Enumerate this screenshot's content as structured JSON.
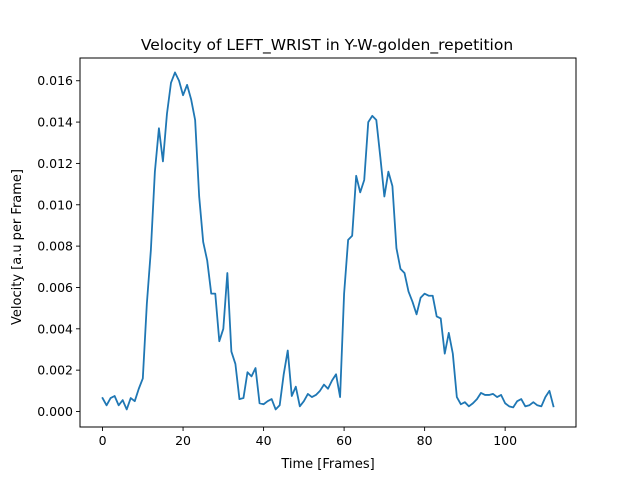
{
  "chart_data": {
    "type": "line",
    "title": "Velocity of LEFT_WRIST in Y-W-golden_repetition",
    "xlabel": "Time [Frames]",
    "ylabel": "Velocity [a.u per Frame]",
    "xlim": [
      -5.6,
      117.6
    ],
    "ylim": [
      -0.00075,
      0.0171
    ],
    "xticks": [
      0,
      20,
      40,
      60,
      80,
      100
    ],
    "xtick_labels": [
      "0",
      "20",
      "40",
      "60",
      "80",
      "100"
    ],
    "yticks": [
      0.0,
      0.002,
      0.004,
      0.006,
      0.008,
      0.01,
      0.012,
      0.014,
      0.016
    ],
    "ytick_labels": [
      "0.000",
      "0.002",
      "0.004",
      "0.006",
      "0.008",
      "0.010",
      "0.012",
      "0.014",
      "0.016"
    ],
    "grid": false,
    "series": [
      {
        "color": "#1f77b4",
        "x": [
          0,
          1,
          2,
          3,
          4,
          5,
          6,
          7,
          8,
          9,
          10,
          11,
          12,
          13,
          14,
          15,
          16,
          17,
          18,
          19,
          20,
          21,
          22,
          23,
          24,
          25,
          26,
          27,
          28,
          29,
          30,
          31,
          32,
          33,
          34,
          35,
          36,
          37,
          38,
          39,
          40,
          41,
          42,
          43,
          44,
          45,
          46,
          47,
          48,
          49,
          50,
          51,
          52,
          53,
          54,
          55,
          56,
          57,
          58,
          59,
          60,
          61,
          62,
          63,
          64,
          65,
          66,
          67,
          68,
          69,
          70,
          71,
          72,
          73,
          74,
          75,
          76,
          77,
          78,
          79,
          80,
          81,
          82,
          83,
          84,
          85,
          86,
          87,
          88,
          89,
          90,
          91,
          92,
          93,
          94,
          95,
          96,
          97,
          98,
          99,
          100,
          101,
          102,
          103,
          104,
          105,
          106,
          107,
          108,
          109,
          110,
          111,
          112
        ],
        "y": [
          0.00065,
          0.0003,
          0.00065,
          0.00075,
          0.0003,
          0.00055,
          0.0001,
          0.00065,
          0.0005,
          0.0011,
          0.0016,
          0.0052,
          0.0078,
          0.0116,
          0.0137,
          0.0121,
          0.0144,
          0.0159,
          0.0164,
          0.016,
          0.0153,
          0.0158,
          0.0151,
          0.0141,
          0.0104,
          0.0082,
          0.0073,
          0.0057,
          0.0057,
          0.0034,
          0.004,
          0.0067,
          0.0029,
          0.0023,
          0.0006,
          0.00065,
          0.0019,
          0.0017,
          0.0021,
          0.0004,
          0.00035,
          0.0005,
          0.0006,
          0.0001,
          0.0003,
          0.0018,
          0.00295,
          0.00075,
          0.0012,
          0.00025,
          0.0005,
          0.00085,
          0.0007,
          0.0008,
          0.001,
          0.0013,
          0.0011,
          0.0015,
          0.0018,
          0.0007,
          0.0057,
          0.0083,
          0.0085,
          0.0114,
          0.0106,
          0.0112,
          0.014,
          0.0143,
          0.0141,
          0.0123,
          0.0104,
          0.0116,
          0.0109,
          0.0079,
          0.0069,
          0.0067,
          0.0058,
          0.0053,
          0.0047,
          0.0055,
          0.0057,
          0.0056,
          0.0056,
          0.0046,
          0.0045,
          0.0028,
          0.0038,
          0.0028,
          0.0007,
          0.00035,
          0.00045,
          0.00025,
          0.0004,
          0.0006,
          0.0009,
          0.0008,
          0.0008,
          0.00085,
          0.0007,
          0.0008,
          0.0004,
          0.00025,
          0.0002,
          0.0005,
          0.0006,
          0.00025,
          0.0003,
          0.00045,
          0.0003,
          0.00025,
          0.0007,
          0.001,
          0.00025
        ]
      }
    ]
  }
}
